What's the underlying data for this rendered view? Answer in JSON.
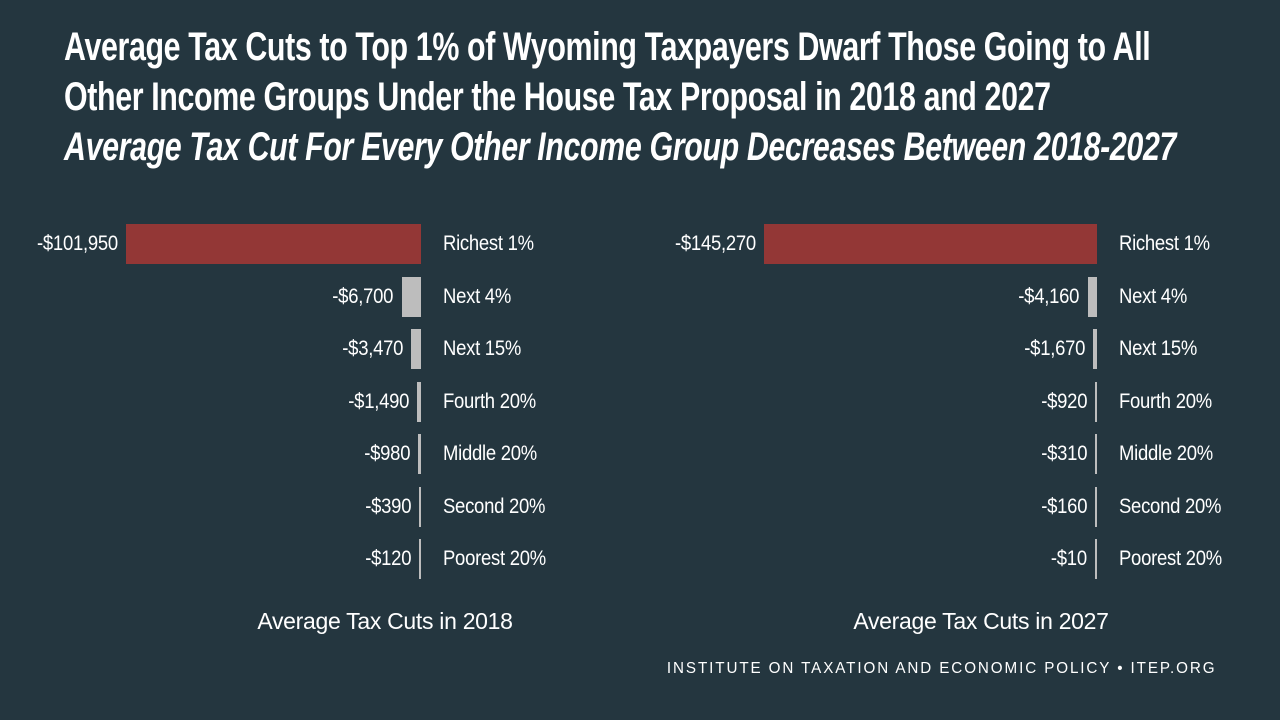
{
  "header": {
    "title_line1": "Average Tax Cuts to Top 1% of Wyoming Taxpayers Dwarf Those Going to All",
    "title_line2": "Other Income Groups Under the House Tax Proposal in 2018 and 2027",
    "subtitle": "Average Tax Cut For Every Other Income Group Decreases Between 2018-2027"
  },
  "chart_data": [
    {
      "type": "bar",
      "orientation": "horizontal",
      "title": "Average Tax Cuts in 2018",
      "categories": [
        "Richest 1%",
        "Next 4%",
        "Next 15%",
        "Fourth 20%",
        "Middle 20%",
        "Second 20%",
        "Poorest 20%"
      ],
      "values": [
        -101950,
        -6700,
        -3470,
        -1490,
        -980,
        -390,
        -120
      ],
      "value_labels": [
        "-$101,950",
        "-$6,700",
        "-$3,470",
        "-$1,490",
        "-$980",
        "-$390",
        "-$120"
      ],
      "highlight_index": 0,
      "axes_visible": false,
      "data_labels_position": "left-of-bar",
      "category_labels_position": "right-of-baseline"
    },
    {
      "type": "bar",
      "orientation": "horizontal",
      "title": "Average Tax Cuts in 2027",
      "categories": [
        "Richest 1%",
        "Next 4%",
        "Next 15%",
        "Fourth 20%",
        "Middle 20%",
        "Second 20%",
        "Poorest 20%"
      ],
      "values": [
        -145270,
        -4160,
        -1670,
        -920,
        -310,
        -160,
        -10
      ],
      "value_labels": [
        "-$145,270",
        "-$4,160",
        "-$1,670",
        "-$920",
        "-$310",
        "-$160",
        "-$10"
      ],
      "highlight_index": 0,
      "axes_visible": false,
      "data_labels_position": "left-of-bar",
      "category_labels_position": "right-of-baseline"
    }
  ],
  "footer": {
    "credit": "INSTITUTE ON TAXATION AND ECONOMIC POLICY • ITEP.ORG"
  },
  "colors": {
    "background": "#24363f",
    "highlight_bar": "#933736",
    "other_bar": "#bdbdbd",
    "text": "#ffffff"
  }
}
